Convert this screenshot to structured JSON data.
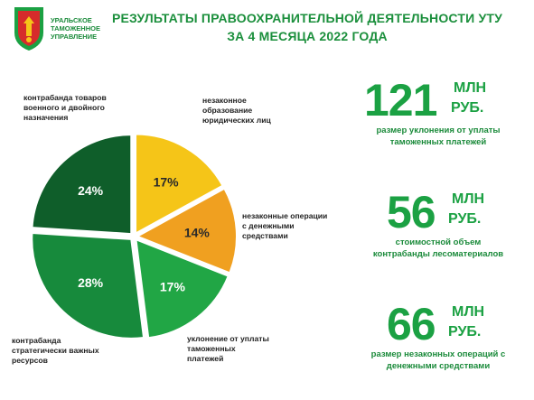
{
  "header": {
    "org_name": "УРАЛЬСКОЕ\nТАМОЖЕННОЕ\nУПРАВЛЕНИЕ",
    "title_line1": "РЕЗУЛЬТАТЫ ПРАВООХРАНИТЕЛЬНОЙ ДЕЯТЕЛЬНОСТИ УТУ",
    "title_line2": "ЗА 4 МЕСЯЦА 2022 ГОДА"
  },
  "chart_data": {
    "type": "pie",
    "slices": [
      {
        "name": "незаконное образование юридических лиц",
        "value": 17,
        "label": "17%",
        "color": "#f5c518"
      },
      {
        "name": "незаконные операции с денежными средствами",
        "value": 14,
        "label": "14%",
        "color": "#f0a020"
      },
      {
        "name": "уклонение от уплаты таможенных платежей",
        "value": 17,
        "label": "17%",
        "color": "#21a645"
      },
      {
        "name": "контрабанда стратегически важных ресурсов",
        "value": 28,
        "label": "28%",
        "color": "#178a3c"
      },
      {
        "name": "контрабанда товаров военного и двойного назначения",
        "value": 24,
        "label": "24%",
        "color": "#0f5e2a"
      }
    ],
    "callouts": {
      "s0": "незаконное\nобразование\nюридических лиц",
      "s1": "незаконные операции\nс денежными\nсредствами",
      "s2": "уклонение от уплаты\nтаможенных\nплатежей",
      "s3": "контрабанда\nстратегически важных\nресурсов",
      "s4": "контрабанда товаров\nвоенного и двойного\nназначения"
    }
  },
  "stats": [
    {
      "number": "121",
      "unit1": "МЛН",
      "unit2": "РУБ.",
      "desc": "размер уклонения от уплаты\nтаможенных платежей"
    },
    {
      "number": "56",
      "unit1": "МЛН",
      "unit2": "РУБ.",
      "desc": "стоимостной объем\nконтрабанды лесоматериалов"
    },
    {
      "number": "66",
      "unit1": "МЛН",
      "unit2": "РУБ.",
      "desc": "размер незаконных операций с\nденежными средствами"
    }
  ],
  "colors": {
    "brand_green": "#1ba143",
    "title_green": "#1b8f3c"
  }
}
